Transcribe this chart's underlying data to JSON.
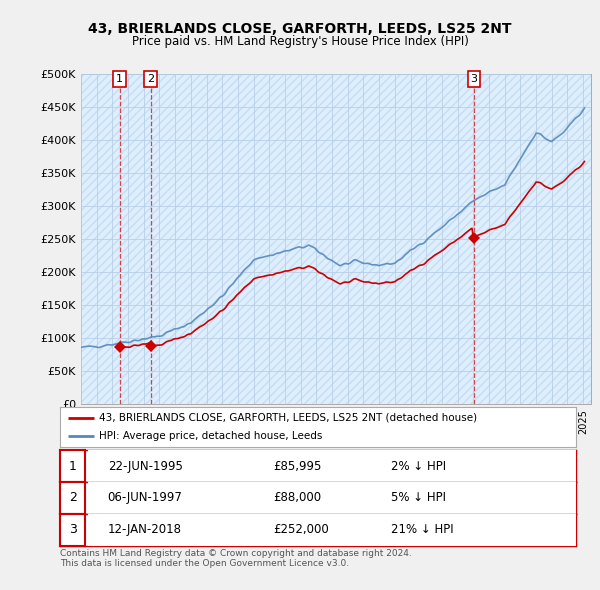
{
  "title": "43, BRIERLANDS CLOSE, GARFORTH, LEEDS, LS25 2NT",
  "subtitle": "Price paid vs. HM Land Registry's House Price Index (HPI)",
  "ylim": [
    0,
    500000
  ],
  "yticks": [
    0,
    50000,
    100000,
    150000,
    200000,
    250000,
    300000,
    350000,
    400000,
    450000,
    500000
  ],
  "ytick_labels": [
    "£0",
    "£50K",
    "£100K",
    "£150K",
    "£200K",
    "£250K",
    "£300K",
    "£350K",
    "£400K",
    "£450K",
    "£500K"
  ],
  "sales": [
    {
      "date_num": 1995.47,
      "price": 85995,
      "label": "1"
    },
    {
      "date_num": 1997.43,
      "price": 88000,
      "label": "2"
    },
    {
      "date_num": 2018.03,
      "price": 252000,
      "label": "3"
    }
  ],
  "sale_line_color": "#cc0000",
  "hpi_line_color": "#5588bb",
  "hpi_fill_color": "#ddeeff",
  "legend_entries": [
    "43, BRIERLANDS CLOSE, GARFORTH, LEEDS, LS25 2NT (detached house)",
    "HPI: Average price, detached house, Leeds"
  ],
  "table_rows": [
    {
      "num": "1",
      "date": "22-JUN-1995",
      "price": "£85,995",
      "hpi": "2% ↓ HPI"
    },
    {
      "num": "2",
      "date": "06-JUN-1997",
      "price": "£88,000",
      "hpi": "5% ↓ HPI"
    },
    {
      "num": "3",
      "date": "12-JAN-2018",
      "price": "£252,000",
      "hpi": "21% ↓ HPI"
    }
  ],
  "footer": "Contains HM Land Registry data © Crown copyright and database right 2024.\nThis data is licensed under the Open Government Licence v3.0.",
  "bg_color": "#f0f0f0",
  "plot_bg_color": "#ffffff",
  "grid_color": "#cccccc",
  "hatch_color": "#dddddd"
}
